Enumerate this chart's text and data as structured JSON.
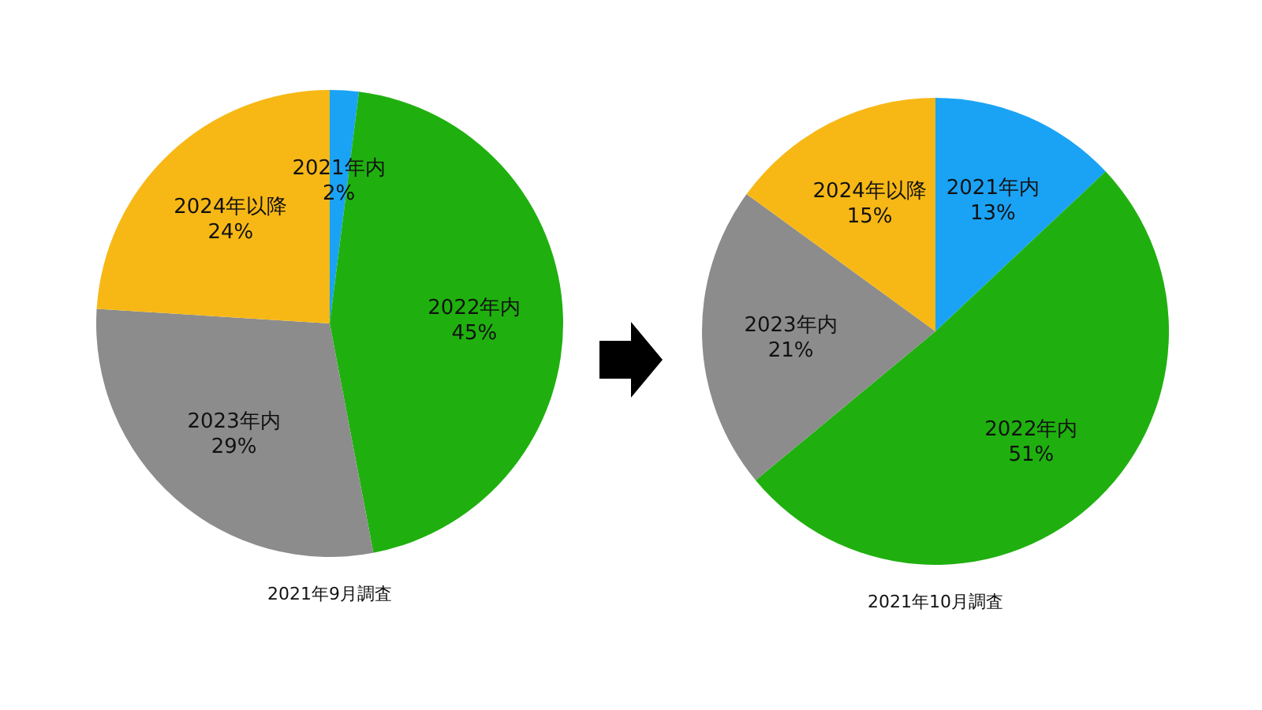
{
  "chart_data": [
    {
      "type": "pie",
      "title": "2021年9月調査",
      "categories": [
        "2021年内",
        "2022年内",
        "2023年内",
        "2024年以降"
      ],
      "values": [
        2,
        45,
        29,
        24
      ],
      "colors": [
        "#1aa3f5",
        "#1fb00f",
        "#8c8c8c",
        "#f7b816"
      ],
      "value_labels": [
        "2%",
        "45%",
        "29%",
        "24%"
      ]
    },
    {
      "type": "pie",
      "title": "2021年10月調査",
      "categories": [
        "2021年内",
        "2022年内",
        "2023年内",
        "2024年以降"
      ],
      "values": [
        13,
        51,
        21,
        15
      ],
      "colors": [
        "#1aa3f5",
        "#1fb00f",
        "#8c8c8c",
        "#f7b816"
      ],
      "value_labels": [
        "13%",
        "51%",
        "21%",
        "15%"
      ]
    }
  ]
}
